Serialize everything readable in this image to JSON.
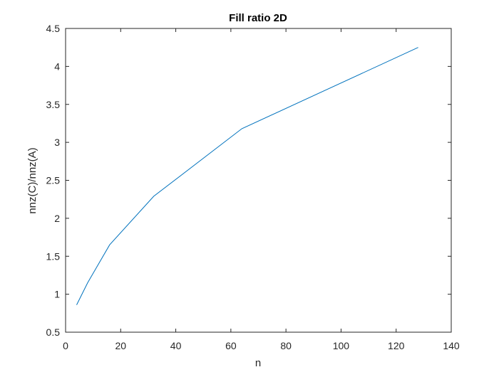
{
  "chart_data": {
    "type": "line",
    "title": "Fill ratio 2D",
    "xlabel": "n",
    "ylabel": "nnz(C)/nnz(A)",
    "xlim": [
      0,
      140
    ],
    "ylim": [
      0.5,
      4.5
    ],
    "xticks": [
      0,
      20,
      40,
      60,
      80,
      100,
      120,
      140
    ],
    "yticks": [
      0.5,
      1,
      1.5,
      2,
      2.5,
      3,
      3.5,
      4,
      4.5
    ],
    "xtick_labels": [
      "0",
      "20",
      "40",
      "60",
      "80",
      "100",
      "120",
      "140"
    ],
    "ytick_labels": [
      "0.5",
      "1",
      "1.5",
      "2",
      "2.5",
      "3",
      "3.5",
      "4",
      "4.5"
    ],
    "grid": false,
    "legend": "none",
    "series": [
      {
        "color": "#0072BD",
        "x": [
          4,
          8,
          16,
          32,
          64,
          128
        ],
        "y": [
          0.86,
          1.15,
          1.65,
          2.29,
          3.18,
          4.25
        ]
      }
    ]
  }
}
